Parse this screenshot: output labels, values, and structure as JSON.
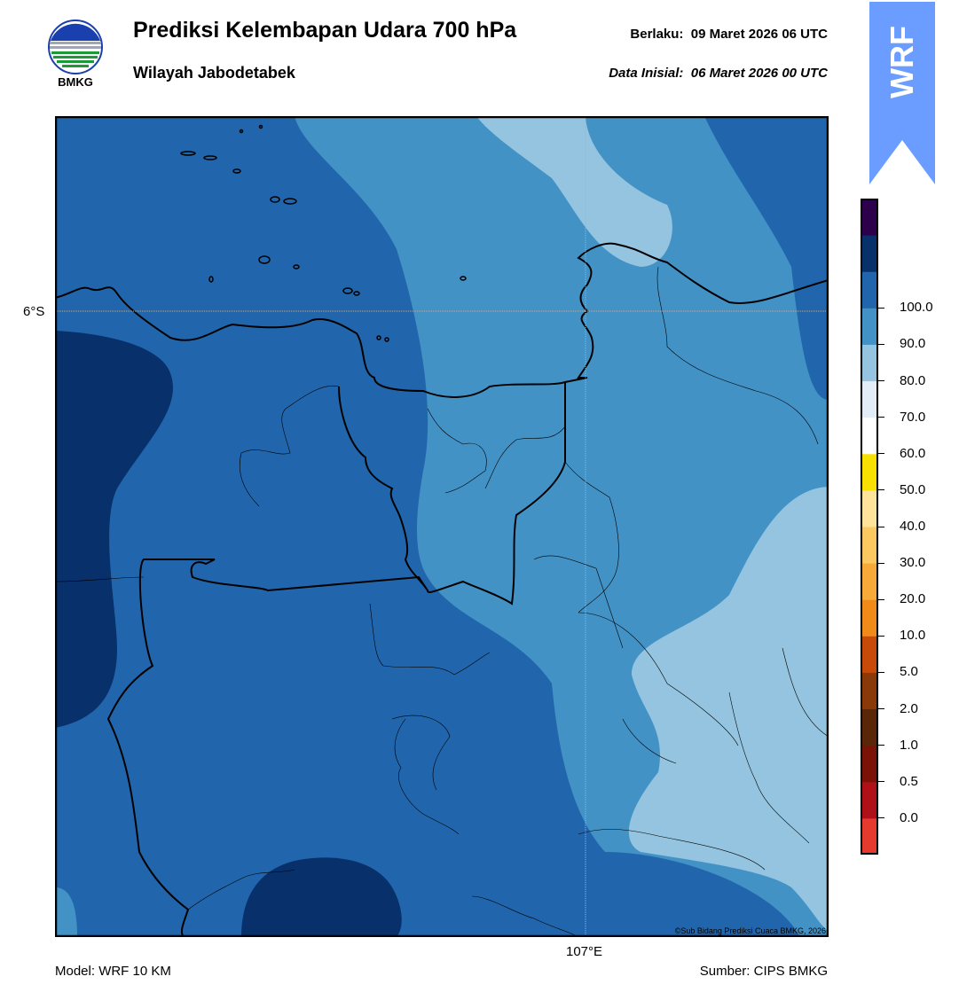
{
  "header": {
    "title": "Prediksi Kelembapan Udara 700 hPa",
    "subtitle": "Wilayah Jabodetabek",
    "valid_label": "Berlaku:  09 Maret 2026 06 UTC",
    "init_label": "Data Inisial:  06 Maret 2026 00 UTC"
  },
  "logo": {
    "icon": "bmkg-logo",
    "text": "BMKG"
  },
  "badge": {
    "text": "WRF",
    "color": "#6a9dff"
  },
  "map": {
    "lat_label": "6°S",
    "lon_label": "107°E",
    "credit": "©Sub Bidang Prediksi Cuaca BMKG, 2026"
  },
  "colorbar": {
    "ticks": [
      "0.0",
      "0.5",
      "1.0",
      "2.0",
      "5.0",
      "10.0",
      "20.0",
      "30.0",
      "40.0",
      "50.0",
      "60.0",
      "70.0",
      "80.0",
      "90.0",
      "100.0"
    ],
    "colors_bottom_to_top": [
      "#e63a2e",
      "#b01018",
      "#7a1208",
      "#5a2608",
      "#8a3a08",
      "#c84a08",
      "#f08a18",
      "#f8aa38",
      "#fcc860",
      "#fde49a",
      "#f8e000",
      "#ffffff",
      "#e2edf7",
      "#94c4df",
      "#4392c6",
      "#2166ac",
      "#08306b",
      "#2d004b"
    ]
  },
  "footer": {
    "model": "Model: WRF 10 KM",
    "source": "Sumber: CIPS BMKG"
  }
}
